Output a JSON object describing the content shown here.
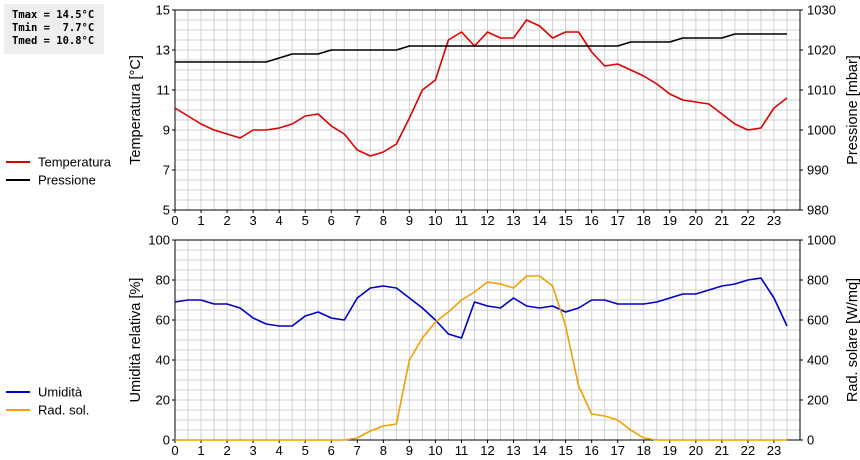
{
  "stats": {
    "tmax": "Tmax = 14.5°C",
    "tmin": "Tmin =  7.7°C",
    "tmed": "Tmed = 10.8°C"
  },
  "chart_data": [
    {
      "type": "line",
      "x": [
        0,
        0.5,
        1,
        1.5,
        2,
        2.5,
        3,
        3.5,
        4,
        4.5,
        5,
        5.5,
        6,
        6.5,
        7,
        7.5,
        8,
        8.5,
        9,
        9.5,
        10,
        10.5,
        11,
        11.5,
        12,
        12.5,
        13,
        13.5,
        14,
        14.5,
        15,
        15.5,
        16,
        16.5,
        17,
        17.5,
        18,
        18.5,
        19,
        19.5,
        20,
        20.5,
        21,
        21.5,
        22,
        22.5,
        23,
        23.5
      ],
      "xlim": [
        0,
        24
      ],
      "xticks": [
        "0",
        "1",
        "2",
        "3",
        "4",
        "5",
        "6",
        "7",
        "8",
        "9",
        "10",
        "11",
        "12",
        "13",
        "14",
        "15",
        "16",
        "17",
        "18",
        "19",
        "20",
        "21",
        "22",
        "23"
      ],
      "ylabel": "Temperatura [°C]",
      "ylim": [
        5,
        15
      ],
      "yticks": [
        "5",
        "7",
        "9",
        "11",
        "13",
        "15"
      ],
      "y2label": "Pressione [mbar]",
      "y2lim": [
        980,
        1030
      ],
      "y2ticks": [
        "980",
        "990",
        "1000",
        "1010",
        "1020",
        "1030"
      ],
      "grid": true,
      "legend_position": "left",
      "series": [
        {
          "name": "Temperatura",
          "axis": "left",
          "color": "#dd0000",
          "values": [
            10.1,
            9.7,
            9.3,
            9.0,
            8.8,
            8.6,
            9.0,
            9.0,
            9.1,
            9.3,
            9.7,
            9.8,
            9.2,
            8.8,
            8.0,
            7.7,
            7.9,
            8.3,
            9.6,
            11.0,
            11.5,
            13.5,
            13.9,
            13.2,
            13.9,
            13.6,
            13.6,
            14.5,
            14.2,
            13.6,
            13.9,
            13.9,
            12.9,
            12.2,
            12.3,
            12.0,
            11.7,
            11.3,
            10.8,
            10.5,
            10.4,
            10.3,
            9.8,
            9.3,
            9.0,
            9.1,
            10.1,
            10.6
          ]
        },
        {
          "name": "Pressione",
          "axis": "right",
          "color": "#000000",
          "values": [
            1017,
            1017,
            1017,
            1017,
            1017,
            1017,
            1017,
            1017,
            1018,
            1019,
            1019,
            1019,
            1020,
            1020,
            1020,
            1020,
            1020,
            1020,
            1021,
            1021,
            1021,
            1021,
            1021,
            1021,
            1021,
            1021,
            1021,
            1021,
            1021,
            1021,
            1021,
            1021,
            1021,
            1021,
            1021,
            1022,
            1022,
            1022,
            1022,
            1023,
            1023,
            1023,
            1023,
            1024,
            1024,
            1024,
            1024,
            1024
          ]
        }
      ]
    },
    {
      "type": "line",
      "x": [
        0,
        0.5,
        1,
        1.5,
        2,
        2.5,
        3,
        3.5,
        4,
        4.5,
        5,
        5.5,
        6,
        6.5,
        7,
        7.5,
        8,
        8.5,
        9,
        9.5,
        10,
        10.5,
        11,
        11.5,
        12,
        12.5,
        13,
        13.5,
        14,
        14.5,
        15,
        15.5,
        16,
        16.5,
        17,
        17.5,
        18,
        18.5,
        19,
        19.5,
        20,
        20.5,
        21,
        21.5,
        22,
        22.5,
        23,
        23.5
      ],
      "xlim": [
        0,
        24
      ],
      "xticks": [
        "0",
        "1",
        "2",
        "3",
        "4",
        "5",
        "6",
        "7",
        "8",
        "9",
        "10",
        "11",
        "12",
        "13",
        "14",
        "15",
        "16",
        "17",
        "18",
        "19",
        "20",
        "21",
        "22",
        "23"
      ],
      "ylabel": "Umidità relativa [%]",
      "ylim": [
        0,
        100
      ],
      "yticks": [
        "0",
        "20",
        "40",
        "60",
        "80",
        "100"
      ],
      "y2label": "Rad. solare [W/mq]",
      "y2lim": [
        0,
        1000
      ],
      "y2ticks": [
        "0",
        "200",
        "400",
        "600",
        "800",
        "1000"
      ],
      "grid": true,
      "legend_position": "left",
      "series": [
        {
          "name": "Umidità",
          "axis": "left",
          "color": "#0000cc",
          "values": [
            69,
            70,
            70,
            68,
            68,
            66,
            61,
            58,
            57,
            57,
            62,
            64,
            61,
            60,
            71,
            76,
            77,
            76,
            71,
            66,
            60,
            53,
            51,
            69,
            67,
            66,
            71,
            67,
            66,
            67,
            64,
            66,
            70,
            70,
            68,
            68,
            68,
            69,
            71,
            73,
            73,
            75,
            77,
            78,
            80,
            81,
            71,
            57
          ]
        },
        {
          "name": "Rad. sol.",
          "axis": "right",
          "color": "#f0a000",
          "values": [
            0,
            0,
            0,
            0,
            0,
            0,
            0,
            0,
            0,
            0,
            0,
            0,
            0,
            0,
            10,
            45,
            70,
            80,
            400,
            510,
            590,
            640,
            700,
            740,
            790,
            780,
            760,
            820,
            820,
            770,
            570,
            270,
            130,
            120,
            100,
            50,
            10,
            0,
            0,
            0,
            0,
            0,
            0,
            0,
            0,
            0,
            0,
            0
          ]
        }
      ]
    }
  ]
}
